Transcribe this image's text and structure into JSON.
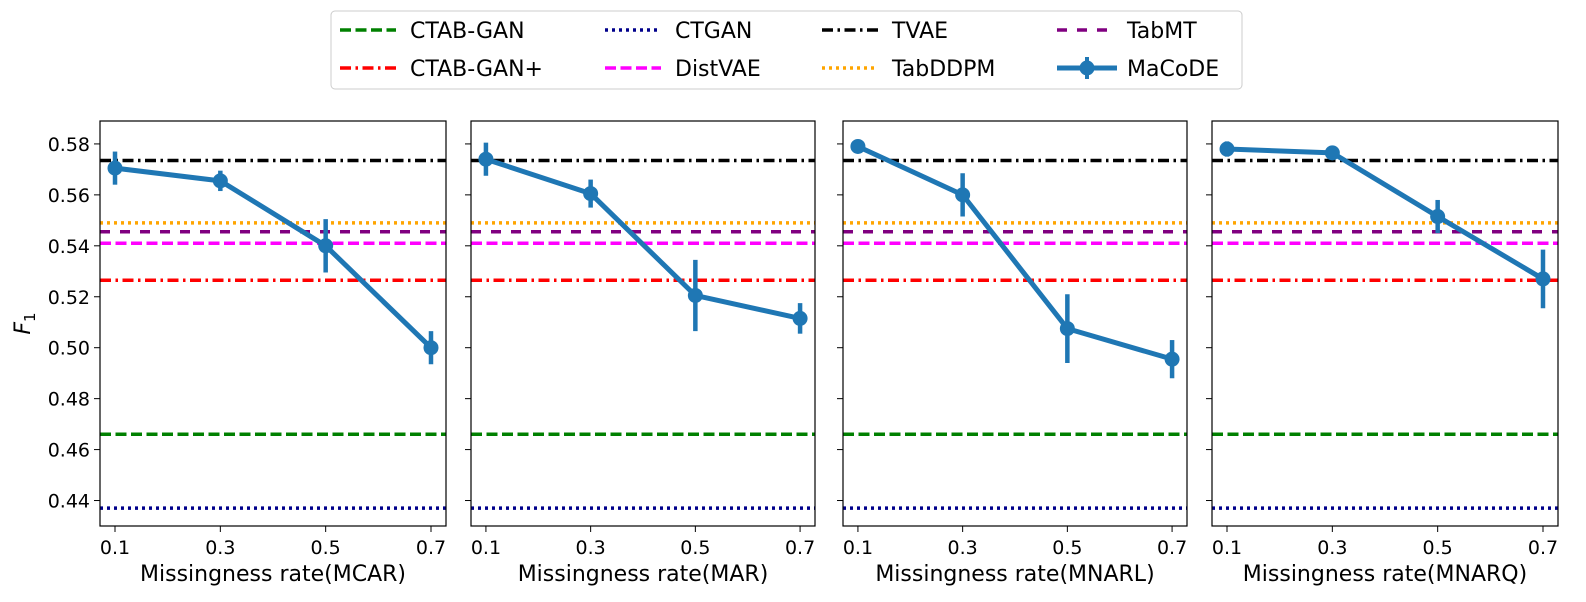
{
  "legend": [
    {
      "label": "CTAB-GAN",
      "color": "#008000",
      "style": "dashed"
    },
    {
      "label": "CTAB-GAN+",
      "color": "#ff0000",
      "style": "dashdot"
    },
    {
      "label": "CTGAN",
      "color": "#00008b",
      "style": "dotted"
    },
    {
      "label": "DistVAE",
      "color": "#ff00ff",
      "style": "dashed"
    },
    {
      "label": "TVAE",
      "color": "#000000",
      "style": "dashdot"
    },
    {
      "label": "TabDDPM",
      "color": "#ffa500",
      "style": "dotted"
    },
    {
      "label": "TabMT",
      "color": "#800080",
      "style": "loosedash"
    },
    {
      "label": "MaCoDE",
      "color": "#1f77b4",
      "style": "errorbar"
    }
  ],
  "chart_data": [
    {
      "type": "line",
      "xlabel": "Missingness rate(MCAR)",
      "ylabel": "F1",
      "x": [
        0.1,
        0.3,
        0.5,
        0.7
      ],
      "xticks": [
        "0.1",
        "0.3",
        "0.5",
        "0.7"
      ],
      "ylim": [
        0.43,
        0.589
      ],
      "yticks": [
        "0.44",
        "0.46",
        "0.48",
        "0.50",
        "0.52",
        "0.54",
        "0.56",
        "0.58"
      ],
      "baselines": {
        "CTAB-GAN": 0.466,
        "CTAB-GAN+": 0.5265,
        "CTGAN": 0.437,
        "DistVAE": 0.541,
        "TVAE": 0.5735,
        "TabDDPM": 0.549,
        "TabMT": 0.5455
      },
      "series": [
        {
          "name": "MaCoDE",
          "values": [
            0.5705,
            0.5655,
            0.54,
            0.5
          ],
          "err": [
            0.0065,
            0.004,
            0.0105,
            0.0065
          ]
        }
      ]
    },
    {
      "type": "line",
      "xlabel": "Missingness rate(MAR)",
      "ylabel": "F1",
      "x": [
        0.1,
        0.3,
        0.5,
        0.7
      ],
      "xticks": [
        "0.1",
        "0.3",
        "0.5",
        "0.7"
      ],
      "ylim": [
        0.43,
        0.589
      ],
      "yticks": [
        "0.44",
        "0.46",
        "0.48",
        "0.50",
        "0.52",
        "0.54",
        "0.56",
        "0.58"
      ],
      "baselines": {
        "CTAB-GAN": 0.466,
        "CTAB-GAN+": 0.5265,
        "CTGAN": 0.437,
        "DistVAE": 0.541,
        "TVAE": 0.5735,
        "TabDDPM": 0.549,
        "TabMT": 0.5455
      },
      "series": [
        {
          "name": "MaCoDE",
          "values": [
            0.574,
            0.5605,
            0.5205,
            0.5115
          ],
          "err": [
            0.0065,
            0.0055,
            0.014,
            0.006
          ]
        }
      ]
    },
    {
      "type": "line",
      "xlabel": "Missingness rate(MNARL)",
      "ylabel": "F1",
      "x": [
        0.1,
        0.3,
        0.5,
        0.7
      ],
      "xticks": [
        "0.1",
        "0.3",
        "0.5",
        "0.7"
      ],
      "ylim": [
        0.43,
        0.589
      ],
      "yticks": [
        "0.44",
        "0.46",
        "0.48",
        "0.50",
        "0.52",
        "0.54",
        "0.56",
        "0.58"
      ],
      "baselines": {
        "CTAB-GAN": 0.466,
        "CTAB-GAN+": 0.5265,
        "CTGAN": 0.437,
        "DistVAE": 0.541,
        "TVAE": 0.5735,
        "TabDDPM": 0.549,
        "TabMT": 0.5455
      },
      "series": [
        {
          "name": "MaCoDE",
          "values": [
            0.579,
            0.56,
            0.5075,
            0.4955
          ],
          "err": [
            0.0012,
            0.0085,
            0.0135,
            0.0075
          ]
        }
      ]
    },
    {
      "type": "line",
      "xlabel": "Missingness rate(MNARQ)",
      "ylabel": "F1",
      "x": [
        0.1,
        0.3,
        0.5,
        0.7
      ],
      "xticks": [
        "0.1",
        "0.3",
        "0.5",
        "0.7"
      ],
      "ylim": [
        0.43,
        0.589
      ],
      "yticks": [
        "0.44",
        "0.46",
        "0.48",
        "0.50",
        "0.52",
        "0.54",
        "0.56",
        "0.58"
      ],
      "baselines": {
        "CTAB-GAN": 0.466,
        "CTAB-GAN+": 0.5265,
        "CTGAN": 0.437,
        "DistVAE": 0.541,
        "TVAE": 0.5735,
        "TabDDPM": 0.549,
        "TabMT": 0.5455
      },
      "series": [
        {
          "name": "MaCoDE",
          "values": [
            0.578,
            0.5765,
            0.5515,
            0.527
          ],
          "err": [
            0.003,
            0.0025,
            0.0065,
            0.0115
          ]
        }
      ]
    }
  ]
}
